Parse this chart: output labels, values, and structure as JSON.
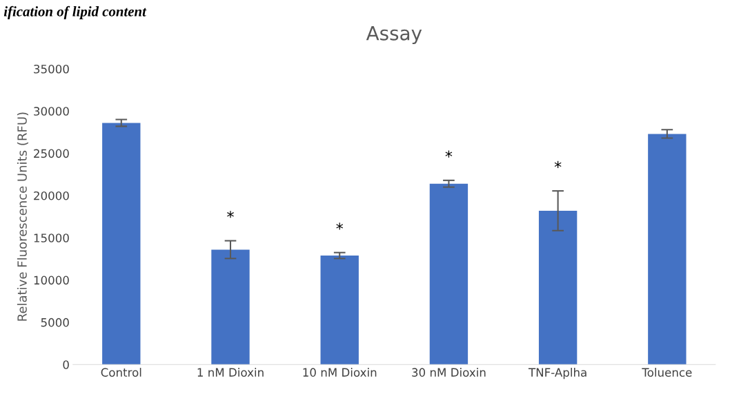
{
  "chart_data": {
    "type": "bar",
    "title": "Assay",
    "ylabel": "Relative Fluorescence Units (RFU)",
    "categories": [
      "Control",
      "1 nM Dioxin",
      "10 nM Dioxin",
      "30 nM Dioxin",
      "TNF-Aplha",
      "Toluence"
    ],
    "values": [
      28600,
      13600,
      12900,
      21400,
      18200,
      27300
    ],
    "errors": [
      400,
      1050,
      350,
      400,
      2350,
      500
    ],
    "color": "#4472c4",
    "ylim": [
      0,
      35000
    ],
    "yticks": [
      0,
      5000,
      10000,
      15000,
      20000,
      25000,
      30000,
      35000
    ],
    "grid": false,
    "legend": false,
    "value_labels": [
      null,
      "*",
      "*",
      "*",
      "*",
      null
    ],
    "annotations": [
      "ification of lipid content"
    ]
  }
}
